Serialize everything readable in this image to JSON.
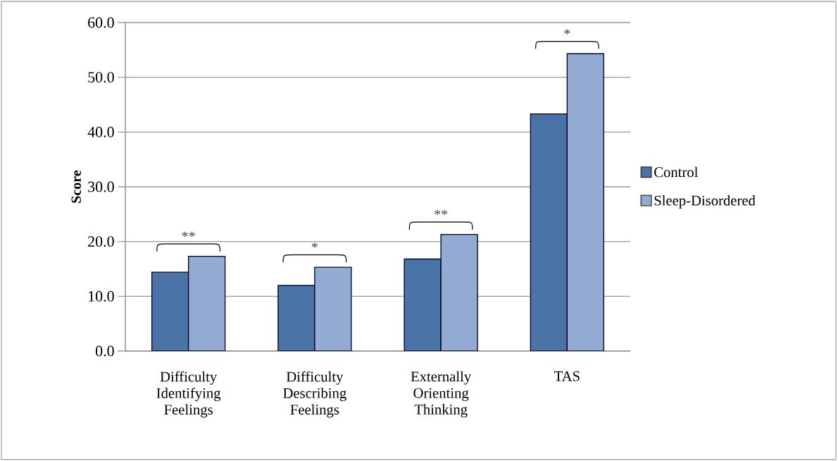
{
  "chart_data": {
    "type": "bar",
    "ylabel": "Score",
    "categories": [
      "Difficulty Identifying Feelings",
      "Difficulty Describing Feelings",
      "Externally Orienting Thinking",
      "TAS"
    ],
    "series": [
      {
        "name": "Control",
        "color": "#4a74a8",
        "values": [
          14.4,
          12.0,
          16.8,
          43.3
        ]
      },
      {
        "name": "Sleep-Disordered",
        "color": "#93abd2",
        "values": [
          17.3,
          15.3,
          21.3,
          54.3
        ]
      }
    ],
    "ylim": [
      0,
      60
    ],
    "yticks": [
      {
        "value": 0,
        "label": "0.0"
      },
      {
        "value": 10,
        "label": "10.0"
      },
      {
        "value": 20,
        "label": "20.0"
      },
      {
        "value": 30,
        "label": "30.0"
      },
      {
        "value": 40,
        "label": "40.0"
      },
      {
        "value": 50,
        "label": "50.0"
      },
      {
        "value": 60,
        "label": "60.0"
      }
    ],
    "grid": "y",
    "legend": "right",
    "annotations": [
      "**",
      "*",
      "**",
      "*"
    ]
  }
}
